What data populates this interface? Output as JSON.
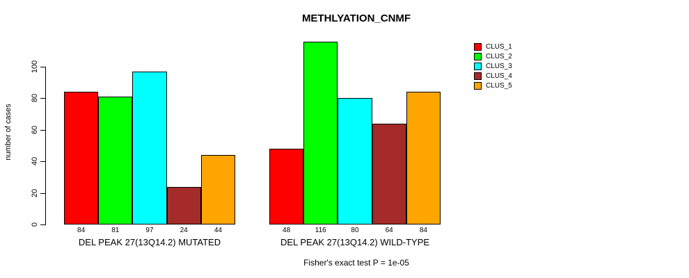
{
  "figure": {
    "title": "METHLYATION_CNMF",
    "y_axis_label": "number of cases",
    "annotation": "Fisher's exact test P = 1e-05"
  },
  "chart_data": {
    "type": "bar",
    "title": "METHLYATION_CNMF",
    "xlabel": "",
    "ylabel": "number of cases",
    "ylim": [
      0,
      116
    ],
    "yticks": [
      0,
      20,
      40,
      60,
      80,
      100
    ],
    "grid": false,
    "legend_position": "top-right",
    "bar_border_color": "#000000",
    "show_bar_values": true,
    "categories": [
      "DEL PEAK 27(13Q14.2) MUTATED",
      "DEL PEAK 27(13Q14.2) WILD-TYPE"
    ],
    "series": [
      {
        "name": "CLUS_1",
        "color": "#FF0000",
        "values": [
          84,
          48
        ]
      },
      {
        "name": "CLUS_2",
        "color": "#00FF00",
        "values": [
          81,
          116
        ]
      },
      {
        "name": "CLUS_3",
        "color": "#00FFFF",
        "values": [
          97,
          80
        ]
      },
      {
        "name": "CLUS_4",
        "color": "#A52A2A",
        "values": [
          24,
          64
        ]
      },
      {
        "name": "CLUS_5",
        "color": "#FFA500",
        "values": [
          44,
          84
        ]
      }
    ],
    "annotation": "Fisher's exact test P = 1e-05"
  }
}
